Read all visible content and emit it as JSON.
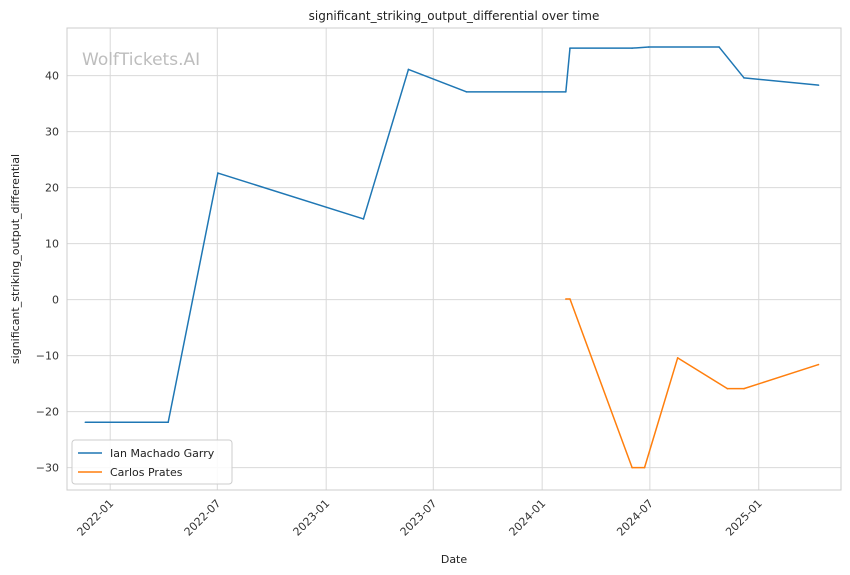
{
  "chart_data": {
    "type": "line",
    "title": "significant_striking_output_differential over time",
    "xlabel": "Date",
    "ylabel": "significant_striking_output_differential",
    "watermark": "WolfTickets.AI",
    "grid": true,
    "legend_position": "bottom-left",
    "xlim": [
      "2021-10-20",
      "2025-05-20"
    ],
    "ylim": [
      -34,
      48.5
    ],
    "x_ticks": [
      "2022-01",
      "2022-07",
      "2023-01",
      "2023-07",
      "2024-01",
      "2024-07",
      "2025-01"
    ],
    "y_ticks": [
      -30,
      -20,
      -10,
      0,
      10,
      20,
      30,
      40
    ],
    "series": [
      {
        "name": "Ian Machado Garry",
        "color": "#1f77b4",
        "points": [
          {
            "x": "2021-11-20",
            "y": -21.9
          },
          {
            "x": "2022-04-09",
            "y": -21.9
          },
          {
            "x": "2022-07-02",
            "y": 22.6
          },
          {
            "x": "2023-03-05",
            "y": 14.4
          },
          {
            "x": "2023-05-20",
            "y": 41.1
          },
          {
            "x": "2023-08-26",
            "y": 37.1
          },
          {
            "x": "2024-02-10",
            "y": 37.1
          },
          {
            "x": "2024-02-17",
            "y": 44.9
          },
          {
            "x": "2024-06-01",
            "y": 44.9
          },
          {
            "x": "2024-06-29",
            "y": 45.1
          },
          {
            "x": "2024-10-26",
            "y": 45.1
          },
          {
            "x": "2024-12-07",
            "y": 39.6
          },
          {
            "x": "2025-04-12",
            "y": 38.3
          }
        ]
      },
      {
        "name": "Carlos Prates",
        "color": "#ff7f0e",
        "points": [
          {
            "x": "2024-02-10",
            "y": 0.1
          },
          {
            "x": "2024-02-17",
            "y": 0.1
          },
          {
            "x": "2024-06-01",
            "y": -30.0
          },
          {
            "x": "2024-06-22",
            "y": -30.0
          },
          {
            "x": "2024-08-17",
            "y": -10.4
          },
          {
            "x": "2024-11-09",
            "y": -15.9
          },
          {
            "x": "2024-12-07",
            "y": -15.9
          },
          {
            "x": "2025-04-12",
            "y": -11.6
          }
        ]
      }
    ]
  }
}
